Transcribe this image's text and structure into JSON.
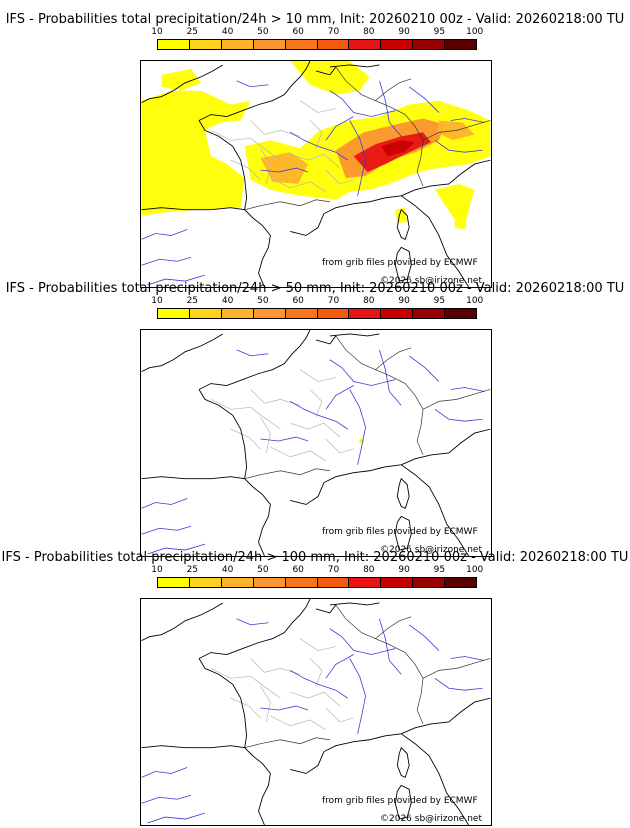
{
  "colorbar": {
    "labels": [
      "10",
      "25",
      "40",
      "50",
      "60",
      "70",
      "80",
      "90",
      "95",
      "100"
    ],
    "colors": [
      "#ffff00",
      "#ffd21e",
      "#fdb32a",
      "#fb9632",
      "#f7761c",
      "#f45a0f",
      "#e81414",
      "#c80000",
      "#9a0000",
      "#5a0000"
    ]
  },
  "credits": {
    "source": "from grib files provided by ECMWF",
    "copyright": "©2026 sb@irizone.net"
  },
  "panels": [
    {
      "title": "IFS - Probabilities total precipitation/24h > 10 mm, Init: 20260210 00z - Valid: 20260218:00 TU",
      "threshold_mm": 10,
      "coverage": "extensive"
    },
    {
      "title": "IFS - Probabilities total precipitation/24h > 50 mm, Init: 20260210 00z - Valid: 20260218:00 TU",
      "threshold_mm": 50,
      "coverage": "trace"
    },
    {
      "title": "IFS - Probabilities total precipitation/24h > 100 mm, Init: 20260210 00z - Valid: 20260218:00 TU",
      "threshold_mm": 100,
      "coverage": "none"
    }
  ]
}
